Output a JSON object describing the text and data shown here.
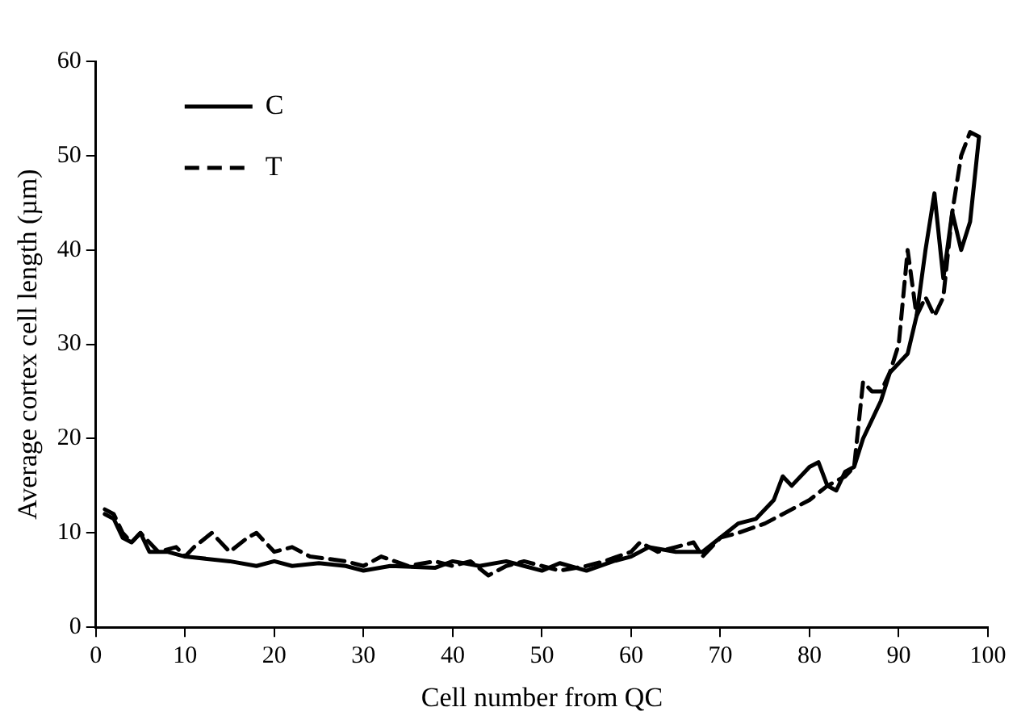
{
  "chart_data": {
    "type": "line",
    "xlabel": "Cell number from QC",
    "ylabel": "Average cortex cell length (µm)",
    "xlim": [
      0,
      100
    ],
    "xticks": [
      0,
      10,
      20,
      30,
      40,
      50,
      60,
      70,
      80,
      90,
      100
    ],
    "ylim": [
      0,
      60
    ],
    "yticks": [
      0,
      10,
      20,
      30,
      40,
      50,
      60
    ],
    "grid": false,
    "legend": "top left",
    "marker": "none",
    "series": [
      {
        "name": "C",
        "color": "#000000",
        "line_style": "solid",
        "x": [
          1,
          2,
          3,
          4,
          5,
          6,
          8,
          10,
          15,
          18,
          20,
          22,
          25,
          28,
          30,
          33,
          38,
          40,
          43,
          46,
          48,
          50,
          52,
          55,
          58,
          60,
          62,
          65,
          68,
          70,
          72,
          74,
          76,
          77,
          78,
          80,
          81,
          82,
          83,
          84,
          85,
          86,
          88,
          89,
          90,
          91,
          92,
          93,
          94,
          95,
          96,
          97,
          98,
          99
        ],
        "values": [
          12,
          11.5,
          9.5,
          9,
          10,
          8,
          8,
          7.5,
          7,
          6.5,
          7,
          6.5,
          6.8,
          6.5,
          6,
          6.5,
          6.3,
          7,
          6.5,
          7,
          6.5,
          6,
          6.8,
          6,
          7,
          7.5,
          8.5,
          8,
          8,
          9.5,
          11,
          11.5,
          13.5,
          16,
          15,
          17,
          17.5,
          15,
          14.5,
          16.5,
          17,
          20,
          24,
          27,
          28,
          29,
          33,
          40,
          46,
          37,
          44,
          40,
          43,
          52
        ]
      },
      {
        "name": "T",
        "color": "#000000",
        "line_style": "dashed",
        "x": [
          1,
          2,
          3,
          4,
          5,
          7,
          9,
          10,
          11,
          13,
          15,
          17,
          18,
          20,
          22,
          24,
          28,
          30,
          32,
          35,
          38,
          40,
          42,
          44,
          46,
          48,
          50,
          52,
          55,
          57,
          60,
          61,
          63,
          65,
          67,
          68,
          70,
          72,
          75,
          77,
          78,
          80,
          82,
          84,
          85,
          86,
          87,
          88,
          89,
          90,
          91,
          92,
          93,
          94,
          95,
          96,
          97,
          98,
          99
        ],
        "values": [
          12.5,
          12,
          10,
          9,
          10,
          8,
          8.5,
          7.5,
          8.5,
          10,
          8,
          9.5,
          10,
          8,
          8.5,
          7.5,
          7,
          6.5,
          7.5,
          6.5,
          7,
          6.5,
          7,
          5.5,
          6.5,
          7,
          6.5,
          6,
          6.5,
          7,
          8,
          9,
          8,
          8.5,
          9,
          7.5,
          9.5,
          10,
          11,
          12,
          12.5,
          13.5,
          15,
          16,
          17,
          26,
          25,
          25,
          27,
          30,
          40,
          33,
          35,
          33,
          35,
          44,
          50,
          52.5,
          52
        ]
      }
    ]
  }
}
